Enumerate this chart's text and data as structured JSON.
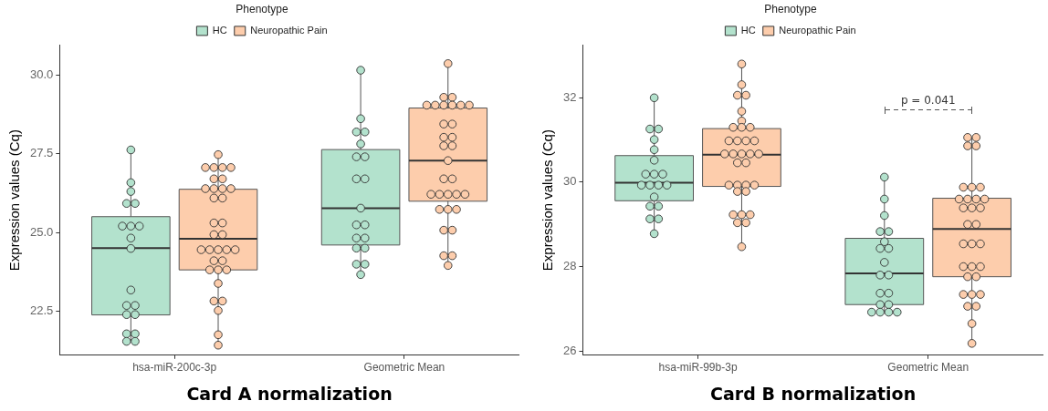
{
  "chart_data": [
    {
      "type": "box",
      "xlabel": "Card A normalization",
      "ylabel": "Expression values (Cq)",
      "legend_title": "Phenotype",
      "legend": "top",
      "marker": "circle",
      "categories": [
        "hsa-miR-200c-3p",
        "Geometric Mean"
      ],
      "ylim": [
        21.1,
        30.95
      ],
      "yticks": [
        {
          "value": 22.5,
          "label": "22.5"
        },
        {
          "value": 25,
          "label": "25.0"
        },
        {
          "value": 27.5,
          "label": "27.5"
        },
        {
          "value": 30,
          "label": "30.0"
        }
      ],
      "series": [
        {
          "name": "HC",
          "color": "#b3e2cd",
          "boxes": [
            {
              "low": 21.54,
              "q1": 22.38,
              "median": 24.5,
              "q3": 25.5,
              "high": 27.62
            },
            {
              "low": 23.66,
              "q1": 24.6,
              "median": 25.77,
              "q3": 27.63,
              "high": 30.15
            }
          ]
        },
        {
          "name": "Neuropathic Pain",
          "color": "#fdcdac",
          "boxes": [
            {
              "low": 21.42,
              "q1": 23.81,
              "median": 24.8,
              "q3": 26.37,
              "high": 27.47
            },
            {
              "low": 23.95,
              "q1": 25.99,
              "median": 27.28,
              "q3": 28.95,
              "high": 30.36
            }
          ]
        },
        {
          "type": "scatter",
          "color": "#b3e2cd",
          "x": [
            "hsa-miR-200c-3p",
            "hsa-miR-200c-3p",
            "hsa-miR-200c-3p",
            "hsa-miR-200c-3p",
            "hsa-miR-200c-3p",
            "hsa-miR-200c-3p",
            "hsa-miR-200c-3p",
            "hsa-miR-200c-3p",
            "hsa-miR-200c-3p",
            "hsa-miR-200c-3p",
            "hsa-miR-200c-3p",
            "hsa-miR-200c-3p",
            "hsa-miR-200c-3p",
            "hsa-miR-200c-3p",
            "hsa-miR-200c-3p",
            "hsa-miR-200c-3p",
            "hsa-miR-200c-3p",
            "hsa-miR-200c-3p",
            "hsa-miR-200c-3p",
            "Geometric Mean",
            "Geometric Mean",
            "Geometric Mean",
            "Geometric Mean",
            "Geometric Mean",
            "Geometric Mean",
            "Geometric Mean",
            "Geometric Mean",
            "Geometric Mean",
            "Geometric Mean",
            "Geometric Mean",
            "Geometric Mean",
            "Geometric Mean",
            "Geometric Mean",
            "Geometric Mean",
            "Geometric Mean",
            "Geometric Mean",
            "Geometric Mean",
            "Geometric Mean"
          ],
          "values": [
            27.62,
            26.58,
            26.3,
            25.92,
            25.92,
            25.2,
            25.2,
            25.2,
            24.82,
            24.49,
            23.17,
            22.68,
            22.68,
            22.39,
            22.39,
            21.78,
            21.78,
            21.54,
            21.54,
            30.15,
            28.61,
            28.19,
            28.19,
            27.81,
            27.4,
            27.4,
            26.7,
            26.7,
            25.77,
            25.24,
            25.24,
            24.82,
            24.82,
            24.5,
            24.5,
            23.99,
            23.99,
            23.66
          ]
        },
        {
          "type": "scatter",
          "color": "#fdcdac",
          "x": [
            "hsa-miR-200c-3p",
            "hsa-miR-200c-3p",
            "hsa-miR-200c-3p",
            "hsa-miR-200c-3p",
            "hsa-miR-200c-3p",
            "hsa-miR-200c-3p",
            "hsa-miR-200c-3p",
            "hsa-miR-200c-3p",
            "hsa-miR-200c-3p",
            "hsa-miR-200c-3p",
            "hsa-miR-200c-3p",
            "hsa-miR-200c-3p",
            "hsa-miR-200c-3p",
            "hsa-miR-200c-3p",
            "hsa-miR-200c-3p",
            "hsa-miR-200c-3p",
            "hsa-miR-200c-3p",
            "hsa-miR-200c-3p",
            "hsa-miR-200c-3p",
            "hsa-miR-200c-3p",
            "hsa-miR-200c-3p",
            "hsa-miR-200c-3p",
            "hsa-miR-200c-3p",
            "hsa-miR-200c-3p",
            "hsa-miR-200c-3p",
            "hsa-miR-200c-3p",
            "hsa-miR-200c-3p",
            "hsa-miR-200c-3p",
            "hsa-miR-200c-3p",
            "hsa-miR-200c-3p",
            "hsa-miR-200c-3p",
            "hsa-miR-200c-3p",
            "hsa-miR-200c-3p",
            "Geometric Mean",
            "Geometric Mean",
            "Geometric Mean",
            "Geometric Mean",
            "Geometric Mean",
            "Geometric Mean",
            "Geometric Mean",
            "Geometric Mean",
            "Geometric Mean",
            "Geometric Mean",
            "Geometric Mean",
            "Geometric Mean",
            "Geometric Mean",
            "Geometric Mean",
            "Geometric Mean",
            "Geometric Mean",
            "Geometric Mean",
            "Geometric Mean",
            "Geometric Mean",
            "Geometric Mean",
            "Geometric Mean",
            "Geometric Mean",
            "Geometric Mean",
            "Geometric Mean",
            "Geometric Mean",
            "Geometric Mean",
            "Geometric Mean",
            "Geometric Mean",
            "Geometric Mean",
            "Geometric Mean",
            "Geometric Mean"
          ],
          "values": [
            27.47,
            27.06,
            27.06,
            27.06,
            27.06,
            26.7,
            26.7,
            26.39,
            26.39,
            26.39,
            26.39,
            26.09,
            26.09,
            25.3,
            25.3,
            24.93,
            24.93,
            24.45,
            24.45,
            24.45,
            24.45,
            24.45,
            24.1,
            24.1,
            23.81,
            23.81,
            23.81,
            23.38,
            22.82,
            22.82,
            22.52,
            21.75,
            21.42,
            30.36,
            29.29,
            29.29,
            29.04,
            29.04,
            29.04,
            29.04,
            29.04,
            29.04,
            28.44,
            28.44,
            28.02,
            28.02,
            27.75,
            27.75,
            27.28,
            26.7,
            26.7,
            26.21,
            26.21,
            26.21,
            26.21,
            26.21,
            25.73,
            25.73,
            25.73,
            25.07,
            25.07,
            24.26,
            24.26,
            23.95
          ]
        }
      ]
    },
    {
      "type": "box",
      "xlabel": "Card B normalization",
      "ylabel": "Expression values (Cq)",
      "legend_title": "Phenotype",
      "legend": "top",
      "marker": "circle",
      "categories": [
        "hsa-miR-99b-3p",
        "Geometric Mean"
      ],
      "ylim": [
        25.9,
        33.25
      ],
      "yticks": [
        26,
        28,
        30,
        32
      ],
      "annotations": [
        "p = 0.041"
      ],
      "series": [
        {
          "name": "HC",
          "color": "#b3e2cd",
          "boxes": [
            {
              "low": 28.78,
              "q1": 29.56,
              "median": 29.99,
              "q3": 30.63,
              "high": 32.0
            },
            {
              "low": 26.92,
              "q1": 27.1,
              "median": 27.84,
              "q3": 28.67,
              "high": 30.12
            }
          ]
        },
        {
          "name": "Neuropathic Pain",
          "color": "#fdcdac",
          "boxes": [
            {
              "low": 28.47,
              "q1": 29.9,
              "median": 30.65,
              "q3": 31.27,
              "high": 32.8
            },
            {
              "low": 26.18,
              "q1": 27.76,
              "median": 28.89,
              "q3": 29.62,
              "high": 31.06
            }
          ]
        },
        {
          "type": "scatter",
          "color": "#b3e2cd",
          "x": [
            "hsa-miR-99b-3p",
            "hsa-miR-99b-3p",
            "hsa-miR-99b-3p",
            "hsa-miR-99b-3p",
            "hsa-miR-99b-3p",
            "hsa-miR-99b-3p",
            "hsa-miR-99b-3p",
            "hsa-miR-99b-3p",
            "hsa-miR-99b-3p",
            "hsa-miR-99b-3p",
            "hsa-miR-99b-3p",
            "hsa-miR-99b-3p",
            "hsa-miR-99b-3p",
            "hsa-miR-99b-3p",
            "hsa-miR-99b-3p",
            "hsa-miR-99b-3p",
            "hsa-miR-99b-3p",
            "hsa-miR-99b-3p",
            "hsa-miR-99b-3p",
            "Geometric Mean",
            "Geometric Mean",
            "Geometric Mean",
            "Geometric Mean",
            "Geometric Mean",
            "Geometric Mean",
            "Geometric Mean",
            "Geometric Mean",
            "Geometric Mean",
            "Geometric Mean",
            "Geometric Mean",
            "Geometric Mean",
            "Geometric Mean",
            "Geometric Mean",
            "Geometric Mean",
            "Geometric Mean",
            "Geometric Mean",
            "Geometric Mean",
            "Geometric Mean"
          ],
          "values": [
            32.0,
            31.26,
            31.26,
            31.01,
            30.77,
            30.52,
            30.19,
            30.19,
            30.19,
            29.93,
            29.93,
            29.93,
            29.93,
            29.65,
            29.43,
            29.43,
            29.13,
            29.13,
            28.78,
            30.12,
            29.6,
            29.21,
            28.83,
            28.83,
            28.59,
            28.43,
            28.43,
            28.1,
            27.8,
            27.8,
            27.37,
            27.37,
            27.1,
            27.1,
            26.92,
            26.92,
            26.92,
            26.92
          ]
        },
        {
          "type": "scatter",
          "color": "#fdcdac",
          "x": [
            "hsa-miR-99b-3p",
            "hsa-miR-99b-3p",
            "hsa-miR-99b-3p",
            "hsa-miR-99b-3p",
            "hsa-miR-99b-3p",
            "hsa-miR-99b-3p",
            "hsa-miR-99b-3p",
            "hsa-miR-99b-3p",
            "hsa-miR-99b-3p",
            "hsa-miR-99b-3p",
            "hsa-miR-99b-3p",
            "hsa-miR-99b-3p",
            "hsa-miR-99b-3p",
            "hsa-miR-99b-3p",
            "hsa-miR-99b-3p",
            "hsa-miR-99b-3p",
            "hsa-miR-99b-3p",
            "hsa-miR-99b-3p",
            "hsa-miR-99b-3p",
            "hsa-miR-99b-3p",
            "hsa-miR-99b-3p",
            "hsa-miR-99b-3p",
            "hsa-miR-99b-3p",
            "hsa-miR-99b-3p",
            "hsa-miR-99b-3p",
            "hsa-miR-99b-3p",
            "hsa-miR-99b-3p",
            "hsa-miR-99b-3p",
            "hsa-miR-99b-3p",
            "hsa-miR-99b-3p",
            "hsa-miR-99b-3p",
            "hsa-miR-99b-3p",
            "Geometric Mean",
            "Geometric Mean",
            "Geometric Mean",
            "Geometric Mean",
            "Geometric Mean",
            "Geometric Mean",
            "Geometric Mean",
            "Geometric Mean",
            "Geometric Mean",
            "Geometric Mean",
            "Geometric Mean",
            "Geometric Mean",
            "Geometric Mean",
            "Geometric Mean",
            "Geometric Mean",
            "Geometric Mean",
            "Geometric Mean",
            "Geometric Mean",
            "Geometric Mean",
            "Geometric Mean",
            "Geometric Mean",
            "Geometric Mean",
            "Geometric Mean",
            "Geometric Mean",
            "Geometric Mean",
            "Geometric Mean",
            "Geometric Mean",
            "Geometric Mean",
            "Geometric Mean",
            "Geometric Mean",
            "Geometric Mean"
          ],
          "values": [
            32.8,
            32.31,
            32.06,
            32.06,
            31.68,
            31.45,
            31.3,
            31.3,
            31.3,
            30.98,
            30.98,
            30.98,
            30.98,
            30.67,
            30.67,
            30.67,
            30.67,
            30.67,
            30.46,
            30.46,
            29.93,
            29.93,
            29.93,
            29.93,
            29.78,
            29.78,
            29.23,
            29.23,
            29.23,
            29.04,
            29.04,
            28.47,
            31.06,
            31.06,
            30.86,
            30.86,
            29.88,
            29.88,
            29.88,
            29.6,
            29.6,
            29.6,
            29.6,
            29.39,
            29.39,
            29.39,
            29.0,
            29.0,
            28.54,
            28.54,
            28.54,
            28.0,
            28.0,
            28.0,
            27.76,
            27.76,
            27.34,
            27.34,
            27.34,
            27.06,
            27.06,
            26.65,
            26.18
          ]
        }
      ]
    }
  ]
}
